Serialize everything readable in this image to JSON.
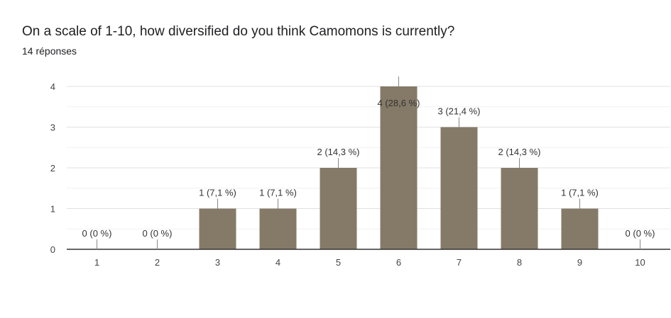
{
  "question": {
    "title": "On a scale of 1-10, how diversified do you think Camomons is currently?",
    "responses": "14 réponses"
  },
  "chart_data": {
    "type": "bar",
    "categories": [
      "1",
      "2",
      "3",
      "4",
      "5",
      "6",
      "7",
      "8",
      "9",
      "10"
    ],
    "values": [
      0,
      0,
      1,
      1,
      2,
      4,
      3,
      2,
      1,
      0
    ],
    "data_labels": [
      "0 (0 %)",
      "0 (0 %)",
      "1 (7,1 %)",
      "1 (7,1 %)",
      "2 (14,3 %)",
      "4 (28,6 %)",
      "3 (21,4 %)",
      "2 (14,3 %)",
      "1 (7,1 %)",
      "0 (0 %)"
    ],
    "yticks": [
      "0",
      "1",
      "2",
      "3",
      "4"
    ],
    "ylim": [
      0,
      4
    ],
    "bar_color": "#857a68",
    "grid": true
  }
}
